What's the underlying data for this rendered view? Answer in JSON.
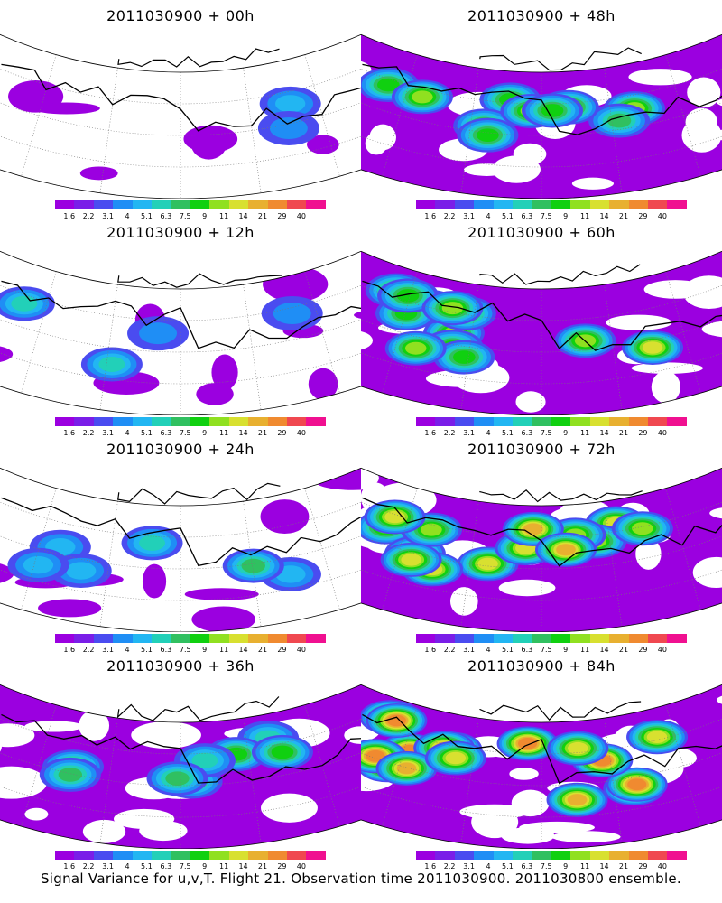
{
  "panels": [
    {
      "title": "2011030900 + 00h",
      "level": 0
    },
    {
      "title": "2011030900 + 48h",
      "level": 4
    },
    {
      "title": "2011030900 + 12h",
      "level": 1
    },
    {
      "title": "2011030900 + 60h",
      "level": 5
    },
    {
      "title": "2011030900 + 24h",
      "level": 2
    },
    {
      "title": "2011030900 + 72h",
      "level": 6
    },
    {
      "title": "2011030900 + 36h",
      "level": 3
    },
    {
      "title": "2011030900 + 84h",
      "level": 7
    }
  ],
  "colorbar": {
    "labels": [
      "1.6",
      "2.2",
      "3.1",
      "4",
      "5.1",
      "6.3",
      "7.5",
      "9",
      "11",
      "14",
      "21",
      "29",
      "40"
    ],
    "colors": [
      "#9b00e0",
      "#7a1ee8",
      "#4a4cf0",
      "#1f8ef5",
      "#22b6f2",
      "#22d0b8",
      "#30c060",
      "#10d010",
      "#90e020",
      "#d8e030",
      "#e8b030",
      "#f08a30",
      "#f04850",
      "#f01090"
    ]
  },
  "caption": "Signal Variance for u,v,T. Flight 21. Observation time 2011030900. 2011030800 ensemble."
}
